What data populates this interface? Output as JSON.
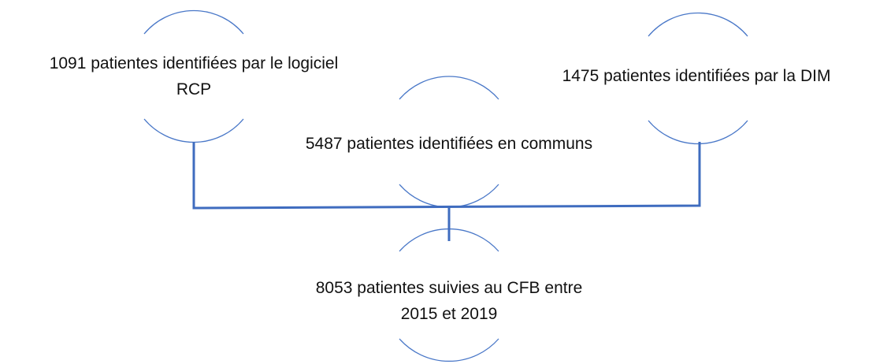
{
  "nodes": [
    {
      "lines": [
        "1091 patientes identifiées par le logiciel",
        "RCP"
      ]
    },
    {
      "lines": [
        "5487 patientes identifiées en communs"
      ]
    },
    {
      "lines": [
        "1475 patientes identifiées par la DIM"
      ]
    },
    {
      "lines": [
        "8053 patientes suivies au CFB entre",
        "2015 et 2019"
      ]
    }
  ]
}
